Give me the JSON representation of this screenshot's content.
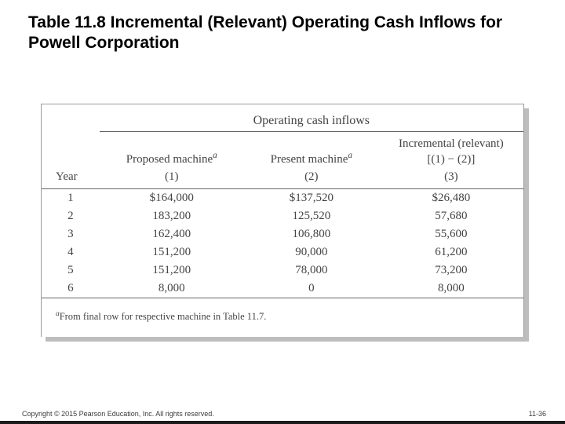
{
  "title": "Table 11.8 Incremental (Relevant) Operating Cash Inflows for Powell Corporation",
  "table": {
    "super_header": "Operating cash inflows",
    "headers": {
      "year": "Year",
      "proposed": "Proposed machine",
      "proposed_sup": "a",
      "proposed_sub": "(1)",
      "present": "Present machine",
      "present_sup": "a",
      "present_sub": "(2)",
      "incremental_line1": "Incremental (relevant)",
      "incremental_line2": "[(1) − (2)]",
      "incremental_sub": "(3)"
    },
    "rows": [
      {
        "year": "1",
        "proposed": "$164,000",
        "present": "$137,520",
        "incremental": "$26,480"
      },
      {
        "year": "2",
        "proposed": "183,200",
        "present": "125,520",
        "incremental": "57,680"
      },
      {
        "year": "3",
        "proposed": "162,400",
        "present": "106,800",
        "incremental": "55,600"
      },
      {
        "year": "4",
        "proposed": "151,200",
        "present": "90,000",
        "incremental": "61,200"
      },
      {
        "year": "5",
        "proposed": "151,200",
        "present": "78,000",
        "incremental": "73,200"
      },
      {
        "year": "6",
        "proposed": "8,000",
        "present": "0",
        "incremental": "8,000"
      }
    ],
    "footnote_sup": "a",
    "footnote": "From final row for respective machine in Table 11.7."
  },
  "footer": {
    "copyright": "Copyright © 2015 Pearson Education, Inc. All rights reserved.",
    "page": "11-36"
  }
}
